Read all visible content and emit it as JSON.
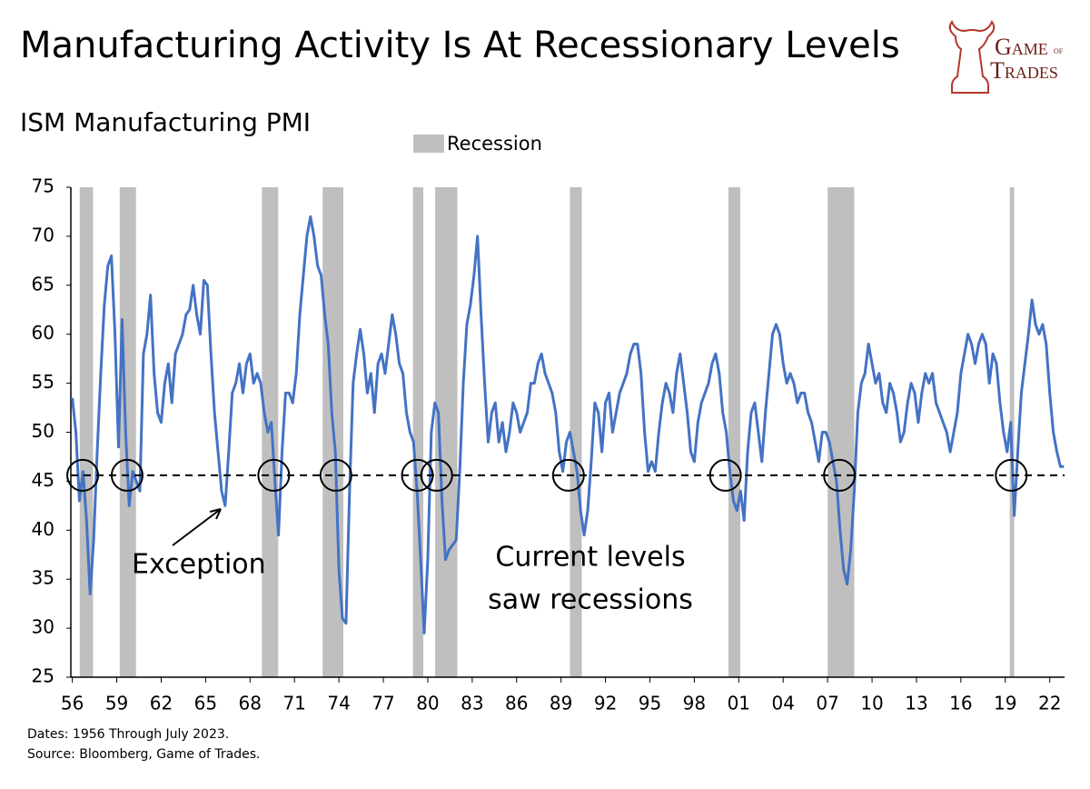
{
  "chart_data": {
    "type": "line",
    "title": "Manufacturing Activity Is At Recessionary Levels",
    "subtitle": "ISM Manufacturing PMI",
    "logo": [
      "Game",
      "of",
      "Trades"
    ],
    "legend_label": "Recession",
    "notes": [
      "Dates: 1956 Through July 2023.",
      "Source: Bloomberg, Game of Trades."
    ],
    "annotations": [
      "Exception",
      "Current levels",
      "saw recessions"
    ],
    "color": "#4472c4",
    "recession_color": "#bfbfbf",
    "ylim": [
      25,
      75
    ],
    "yticks": [
      25,
      30,
      35,
      40,
      45,
      50,
      55,
      60,
      65,
      70,
      75
    ],
    "xlim": [
      1955.9,
      2023
    ],
    "xticks": [
      {
        "value": 1956,
        "label": "56"
      },
      {
        "value": 1959,
        "label": "59"
      },
      {
        "value": 1962,
        "label": "62"
      },
      {
        "value": 1965,
        "label": "65"
      },
      {
        "value": 1968,
        "label": "68"
      },
      {
        "value": 1971,
        "label": "71"
      },
      {
        "value": 1974,
        "label": "74"
      },
      {
        "value": 1977,
        "label": "77"
      },
      {
        "value": 1980,
        "label": "80"
      },
      {
        "value": 1983,
        "label": "83"
      },
      {
        "value": 1986,
        "label": "86"
      },
      {
        "value": 1989,
        "label": "89"
      },
      {
        "value": 1992,
        "label": "92"
      },
      {
        "value": 1995,
        "label": "95"
      },
      {
        "value": 1998,
        "label": "98"
      },
      {
        "value": 2001,
        "label": "01"
      },
      {
        "value": 2004,
        "label": "04"
      },
      {
        "value": 2007,
        "label": "07"
      },
      {
        "value": 2010,
        "label": "10"
      },
      {
        "value": 2013,
        "label": "13"
      },
      {
        "value": 2016,
        "label": "16"
      },
      {
        "value": 2019,
        "label": "19"
      },
      {
        "value": 2022,
        "label": "22"
      }
    ],
    "threshold": 45.6,
    "circles": [
      1956.7,
      1959.7,
      1969.6,
      1973.8,
      1979.3,
      1980.6,
      1989.5,
      2000.1,
      2007.8,
      2019.4
    ],
    "recessions": [
      [
        1956.5,
        1957.4
      ],
      [
        1959.2,
        1960.3
      ],
      [
        1968.8,
        1969.9
      ],
      [
        1972.9,
        1974.3
      ],
      [
        1979.0,
        1979.7
      ],
      [
        1980.5,
        1982.0
      ],
      [
        1989.6,
        1990.4
      ],
      [
        2000.3,
        2001.1
      ],
      [
        2007.0,
        2008.8
      ],
      [
        2019.3,
        2019.6
      ]
    ],
    "x": [
      1956,
      1956.24,
      1956.48,
      1956.72,
      1956.96,
      1957.2,
      1957.44,
      1957.68,
      1957.92,
      1958.16,
      1958.4,
      1958.64,
      1958.88,
      1959.12,
      1959.36,
      1959.6,
      1959.84,
      1960.08,
      1960.32,
      1960.56,
      1960.8,
      1961.04,
      1961.28,
      1961.52,
      1961.76,
      1962,
      1962.24,
      1962.48,
      1962.72,
      1962.96,
      1963.2,
      1963.44,
      1963.68,
      1963.92,
      1964.16,
      1964.4,
      1964.64,
      1964.88,
      1965.12,
      1965.36,
      1965.6,
      1965.84,
      1966.08,
      1966.32,
      1966.56,
      1966.8,
      1967.04,
      1967.28,
      1967.52,
      1967.76,
      1968,
      1968.24,
      1968.48,
      1968.72,
      1968.96,
      1969.2,
      1969.44,
      1969.68,
      1969.92,
      1970.16,
      1970.4,
      1970.64,
      1970.88,
      1971.12,
      1971.36,
      1971.6,
      1971.84,
      1972.08,
      1972.32,
      1972.56,
      1972.8,
      1973.04,
      1973.28,
      1973.52,
      1973.76,
      1974,
      1974.24,
      1974.48,
      1974.72,
      1974.96,
      1975.2,
      1975.44,
      1975.68,
      1975.92,
      1976.16,
      1976.4,
      1976.64,
      1976.88,
      1977.12,
      1977.36,
      1977.6,
      1977.84,
      1978.08,
      1978.32,
      1978.56,
      1978.8,
      1979.04,
      1979.28,
      1979.52,
      1979.76,
      1980,
      1980.24,
      1980.48,
      1980.72,
      1980.96,
      1981.2,
      1981.44,
      1981.68,
      1981.92,
      1982.16,
      1982.4,
      1982.64,
      1982.88,
      1983.12,
      1983.36,
      1983.6,
      1983.84,
      1984.08,
      1984.32,
      1984.56,
      1984.8,
      1985.04,
      1985.28,
      1985.52,
      1985.76,
      1986,
      1986.24,
      1986.48,
      1986.72,
      1986.96,
      1987.2,
      1987.44,
      1987.68,
      1987.92,
      1988.16,
      1988.4,
      1988.64,
      1988.88,
      1989.12,
      1989.36,
      1989.6,
      1989.84,
      1990.08,
      1990.32,
      1990.56,
      1990.8,
      1991.04,
      1991.28,
      1991.52,
      1991.76,
      1992,
      1992.24,
      1992.48,
      1992.72,
      1992.96,
      1993.2,
      1993.44,
      1993.68,
      1993.92,
      1994.16,
      1994.4,
      1994.64,
      1994.88,
      1995.12,
      1995.36,
      1995.6,
      1995.84,
      1996.08,
      1996.32,
      1996.56,
      1996.8,
      1997.04,
      1997.28,
      1997.52,
      1997.76,
      1998,
      1998.24,
      1998.48,
      1998.72,
      1998.96,
      1999.2,
      1999.44,
      1999.68,
      1999.92,
      2000.16,
      2000.4,
      2000.64,
      2000.88,
      2001.12,
      2001.36,
      2001.6,
      2001.84,
      2002.08,
      2002.32,
      2002.56,
      2002.8,
      2003.04,
      2003.28,
      2003.52,
      2003.76,
      2004,
      2004.24,
      2004.48,
      2004.72,
      2004.96,
      2005.2,
      2005.44,
      2005.68,
      2005.92,
      2006.16,
      2006.4,
      2006.64,
      2006.88,
      2007.12,
      2007.36,
      2007.6,
      2007.84,
      2008.08,
      2008.32,
      2008.56,
      2008.8,
      2009.04,
      2009.28,
      2009.52,
      2009.76,
      2010,
      2010.24,
      2010.48,
      2010.72,
      2010.96,
      2011.2,
      2011.44,
      2011.68,
      2011.92,
      2012.16,
      2012.4,
      2012.64,
      2012.88,
      2013.12,
      2013.36,
      2013.6,
      2013.84,
      2014.08,
      2014.32,
      2014.56,
      2014.8,
      2015.04,
      2015.28,
      2015.52,
      2015.76,
      2016,
      2016.24,
      2016.48,
      2016.72,
      2016.96,
      2017.2,
      2017.44,
      2017.68,
      2017.92,
      2018.16,
      2018.4,
      2018.64,
      2018.88,
      2019.12,
      2019.36,
      2019.6,
      2019.84,
      2020.08,
      2020.32,
      2020.56,
      2020.8,
      2021.04,
      2021.28,
      2021.52,
      2021.76,
      2022,
      2022.24,
      2022.48,
      2022.72,
      2022.96
    ],
    "values": [
      53.5,
      50,
      43,
      46,
      41,
      33.5,
      39,
      48,
      56,
      63,
      67,
      68,
      60,
      48.5,
      61.5,
      50,
      42.5,
      46,
      45,
      44,
      58,
      60,
      64,
      56,
      52,
      51,
      55,
      57,
      53,
      58,
      59,
      60,
      62,
      62.5,
      65,
      62,
      60,
      65.5,
      65,
      58,
      52,
      48,
      44,
      42.5,
      48,
      54,
      55,
      57,
      54,
      57,
      58,
      55,
      56,
      55,
      52,
      50,
      51,
      45,
      39.5,
      48,
      54,
      54,
      53,
      56,
      62,
      66,
      70,
      72,
      70,
      67,
      66,
      62,
      59,
      52,
      48,
      36,
      31,
      30.5,
      44,
      55,
      58,
      60.5,
      58,
      54,
      56,
      52,
      57,
      58,
      56,
      59,
      62,
      60,
      57,
      56,
      52,
      50,
      49,
      44,
      37,
      29.5,
      37,
      50,
      53,
      52,
      43,
      37,
      38,
      38.5,
      39,
      46,
      55,
      61,
      63,
      66,
      70,
      62,
      55,
      49,
      52,
      53,
      49,
      51,
      48,
      50,
      53,
      52,
      50,
      51,
      52,
      55,
      55,
      57,
      58,
      56,
      55,
      54,
      52,
      48,
      46,
      49,
      50,
      48,
      46,
      42,
      39.5,
      42,
      47,
      53,
      52,
      48,
      53,
      54,
      50,
      52,
      54,
      55,
      56,
      58,
      59,
      59,
      56,
      50,
      46,
      47,
      46,
      50,
      53,
      55,
      54,
      52,
      56,
      58,
      55,
      52,
      48,
      47,
      51,
      53,
      54,
      55,
      57,
      58,
      56,
      52,
      50,
      46,
      43,
      42,
      44,
      41,
      48,
      52,
      53,
      50,
      47,
      52,
      56,
      60,
      61,
      60,
      57,
      55,
      56,
      55,
      53,
      54,
      54,
      52,
      51,
      49,
      47,
      50,
      50,
      49,
      47,
      45,
      40,
      36,
      34.5,
      38,
      44,
      52,
      55,
      56,
      59,
      57,
      55,
      56,
      53,
      52,
      55,
      54,
      52,
      49,
      50,
      53,
      55,
      54,
      51,
      54,
      56,
      55,
      56,
      53,
      52,
      51,
      50,
      48,
      50,
      52,
      56,
      58,
      60,
      59,
      57,
      59,
      60,
      59,
      55,
      58,
      57,
      53,
      50,
      48,
      51,
      41.5,
      48,
      54,
      57,
      60,
      63.5,
      61,
      60,
      61,
      59,
      54,
      50,
      48,
      46.5,
      46.5
    ]
  }
}
